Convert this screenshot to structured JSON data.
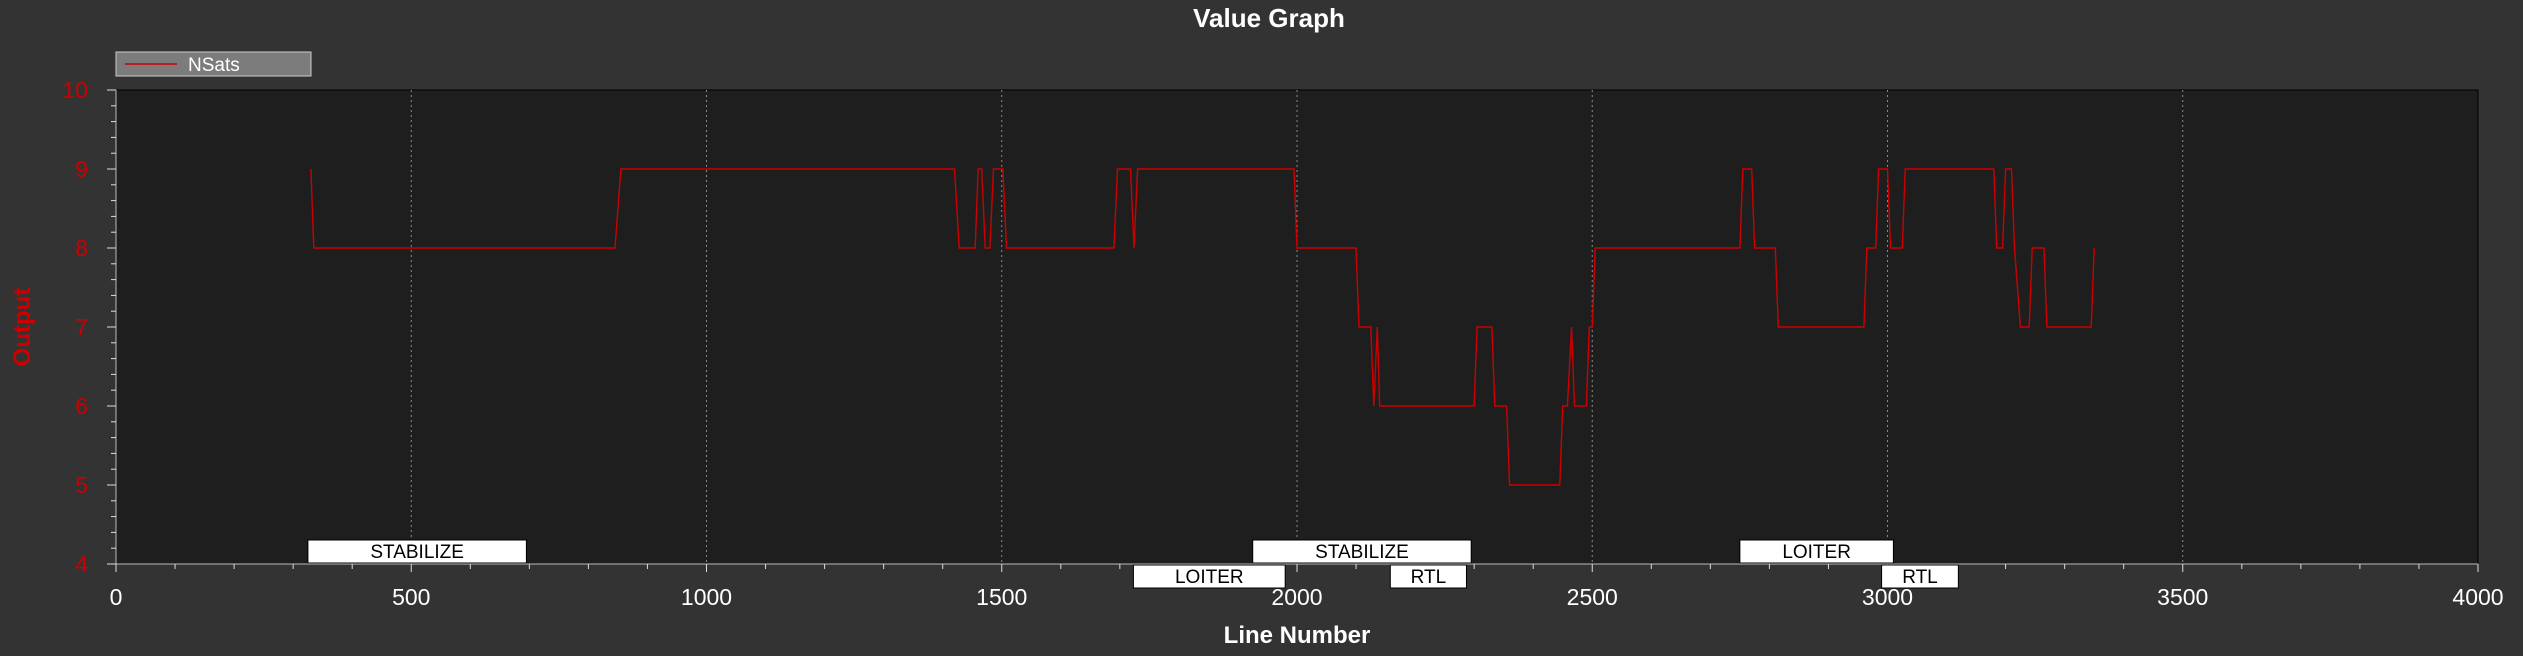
{
  "chart_data": {
    "type": "line",
    "title": "Value Graph",
    "xlabel": "Line Number",
    "ylabel": "Output",
    "xlim": [
      0,
      4000
    ],
    "ylim": [
      4,
      10
    ],
    "x_ticks": [
      0,
      500,
      1000,
      1500,
      2000,
      2500,
      3000,
      3500,
      4000
    ],
    "y_ticks": [
      4,
      5,
      6,
      7,
      8,
      9,
      10
    ],
    "grid": "vertical dotted at major x ticks",
    "legend": {
      "placement": "top-left",
      "entries": [
        "NSats"
      ]
    },
    "series": [
      {
        "name": "NSats",
        "color": "#cc0000",
        "points": [
          [
            330,
            9
          ],
          [
            335,
            8
          ],
          [
            845,
            8
          ],
          [
            855,
            9
          ],
          [
            1420,
            9
          ],
          [
            1428,
            8
          ],
          [
            1455,
            8
          ],
          [
            1460,
            9
          ],
          [
            1466,
            9
          ],
          [
            1472,
            8
          ],
          [
            1480,
            8
          ],
          [
            1486,
            9
          ],
          [
            1502,
            9
          ],
          [
            1508,
            8
          ],
          [
            1690,
            8
          ],
          [
            1696,
            9
          ],
          [
            1718,
            9
          ],
          [
            1724,
            8
          ],
          [
            1730,
            9
          ],
          [
            1995,
            9
          ],
          [
            2000,
            8
          ],
          [
            2100,
            8
          ],
          [
            2105,
            7
          ],
          [
            2125,
            7
          ],
          [
            2130,
            6
          ],
          [
            2136,
            7
          ],
          [
            2140,
            6
          ],
          [
            2300,
            6
          ],
          [
            2305,
            7
          ],
          [
            2330,
            7
          ],
          [
            2335,
            6
          ],
          [
            2355,
            6
          ],
          [
            2360,
            5
          ],
          [
            2445,
            5
          ],
          [
            2450,
            6
          ],
          [
            2458,
            6
          ],
          [
            2465,
            7
          ],
          [
            2470,
            6
          ],
          [
            2490,
            6
          ],
          [
            2495,
            7
          ],
          [
            2500,
            7
          ],
          [
            2505,
            8
          ],
          [
            2750,
            8
          ],
          [
            2755,
            9
          ],
          [
            2770,
            9
          ],
          [
            2775,
            8
          ],
          [
            2810,
            8
          ],
          [
            2815,
            7
          ],
          [
            2960,
            7
          ],
          [
            2965,
            8
          ],
          [
            2980,
            8
          ],
          [
            2985,
            9
          ],
          [
            3000,
            9
          ],
          [
            3005,
            8
          ],
          [
            3025,
            8
          ],
          [
            3030,
            9
          ],
          [
            3180,
            9
          ],
          [
            3185,
            8
          ],
          [
            3195,
            8
          ],
          [
            3200,
            9
          ],
          [
            3210,
            9
          ],
          [
            3215,
            8
          ],
          [
            3225,
            7
          ],
          [
            3240,
            7
          ],
          [
            3245,
            8
          ],
          [
            3265,
            8
          ],
          [
            3270,
            7
          ],
          [
            3345,
            7
          ],
          [
            3350,
            8
          ]
        ]
      }
    ],
    "mode_labels": [
      {
        "text": "STABILIZE",
        "x_start": 325,
        "x_end": 695,
        "row": 0
      },
      {
        "text": "LOITER",
        "x_start": 1723,
        "x_end": 1980,
        "row": 1
      },
      {
        "text": "STABILIZE",
        "x_start": 1925,
        "x_end": 2295,
        "row": 0
      },
      {
        "text": "RTL",
        "x_start": 2158,
        "x_end": 2287,
        "row": 1
      },
      {
        "text": "LOITER",
        "x_start": 2750,
        "x_end": 3010,
        "row": 0
      },
      {
        "text": "RTL",
        "x_start": 2990,
        "x_end": 3120,
        "row": 1
      }
    ]
  }
}
